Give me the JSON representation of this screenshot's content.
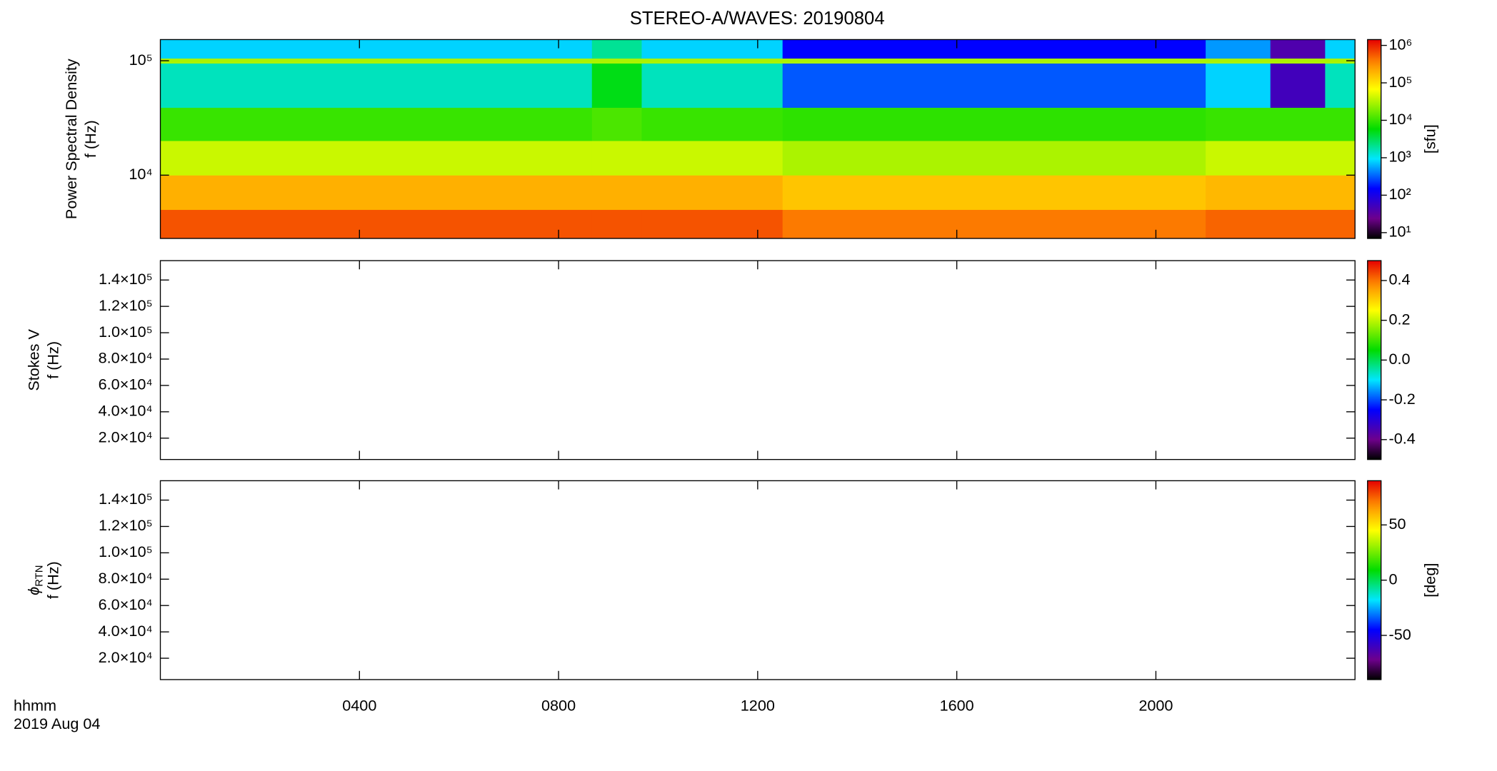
{
  "chart_data": [
    {
      "type": "heatmap",
      "title": "STEREO-A/WAVES: 20190804",
      "ylabel_top": "Power Spectral Density",
      "ylabel": "f (Hz)",
      "xlim": [
        0,
        24
      ],
      "xticks": [
        4,
        8,
        12,
        16,
        20
      ],
      "ylog": true,
      "ylim": [
        2800,
        153000
      ],
      "yticks": [
        {
          "value": 10000,
          "label": "10⁴"
        },
        {
          "value": 100000,
          "label": "10⁵"
        }
      ],
      "x_edges": [
        0,
        8.67,
        9.67,
        12.5,
        21,
        22.3,
        23.4,
        24
      ],
      "y_edges": [
        2800,
        5000,
        10000,
        20000,
        39000,
        95000,
        105000,
        153000
      ],
      "values": [
        [
          600000,
          600000,
          600000,
          400000,
          500000,
          500000,
          500000
        ],
        [
          200000,
          200000,
          200000,
          150000,
          180000,
          180000,
          180000
        ],
        [
          40000,
          40000,
          40000,
          30000,
          40000,
          40000,
          40000
        ],
        [
          10000,
          12000,
          10000,
          9000,
          10000,
          10000,
          10000
        ],
        [
          1500,
          5000,
          1500,
          300,
          800,
          50,
          1500
        ],
        [
          30000,
          30000,
          30000,
          30000,
          30000,
          30000,
          30000
        ],
        [
          800,
          2000,
          800,
          150,
          500,
          40,
          800
        ]
      ],
      "colormap": "rainbow",
      "colorbar": {
        "log": true,
        "lim": [
          7,
          1430000
        ],
        "ticks": [
          {
            "value": 10,
            "label": "10¹"
          },
          {
            "value": 100,
            "label": "10²"
          },
          {
            "value": 1000,
            "label": "10³"
          },
          {
            "value": 10000,
            "label": "10⁴"
          },
          {
            "value": 100000,
            "label": "10⁵"
          },
          {
            "value": 1000000,
            "label": "10⁶"
          }
        ],
        "label": "[sfu]"
      }
    },
    {
      "type": "heatmap",
      "ylabel_top": "Stokes V",
      "ylabel": "f (Hz)",
      "xlim": [
        0,
        24
      ],
      "xticks": [
        4,
        8,
        12,
        16,
        20
      ],
      "ylog": false,
      "ylim": [
        3800,
        154700
      ],
      "yticks": [
        {
          "value": 20000,
          "label": "2.0×10⁴"
        },
        {
          "value": 40000,
          "label": "4.0×10⁴"
        },
        {
          "value": 60000,
          "label": "6.0×10⁴"
        },
        {
          "value": 80000,
          "label": "8.0×10⁴"
        },
        {
          "value": 100000,
          "label": "1.0×10⁵"
        },
        {
          "value": 120000,
          "label": "1.2×10⁵"
        },
        {
          "value": 140000,
          "label": "1.4×10⁵"
        }
      ],
      "colormap": "rainbow",
      "colorbar": {
        "log": false,
        "lim": [
          -0.5,
          0.5
        ],
        "ticks": [
          -0.4,
          -0.2,
          {
            "value": 0,
            "label": "0.0"
          },
          0.2,
          0.4
        ]
      }
    },
    {
      "type": "heatmap",
      "ylabel_symbol": "ϕ",
      "ylabel_subscript": "RTN",
      "ylabel": "f (Hz)",
      "xlim": [
        0,
        24
      ],
      "xticks": [
        {
          "value": 4,
          "label": "0400"
        },
        {
          "value": 8,
          "label": "0800"
        },
        {
          "value": 12,
          "label": "1200"
        },
        {
          "value": 16,
          "label": "1600"
        },
        {
          "value": 20,
          "label": "2000"
        }
      ],
      "xlabel": [
        "hhmm",
        "2019 Aug 04"
      ],
      "ylog": false,
      "ylim": [
        3800,
        154700
      ],
      "yticks": [
        {
          "value": 20000,
          "label": "2.0×10⁴"
        },
        {
          "value": 40000,
          "label": "4.0×10⁴"
        },
        {
          "value": 60000,
          "label": "6.0×10⁴"
        },
        {
          "value": 80000,
          "label": "8.0×10⁴"
        },
        {
          "value": 100000,
          "label": "1.0×10⁵"
        },
        {
          "value": 120000,
          "label": "1.2×10⁵"
        },
        {
          "value": 140000,
          "label": "1.4×10⁵"
        }
      ],
      "colormap": "rainbow",
      "colorbar": {
        "log": false,
        "lim": [
          -90,
          90
        ],
        "ticks": [
          -50,
          0,
          50
        ],
        "label": "[deg]"
      }
    }
  ]
}
